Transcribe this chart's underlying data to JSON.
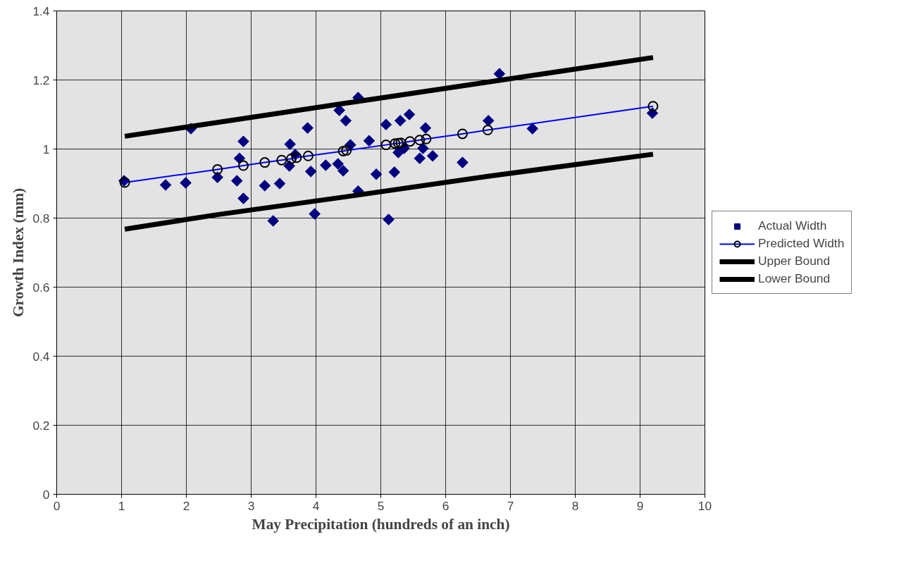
{
  "chart_data": {
    "type": "scatter",
    "xlabel": "May Precipitation (hundreds of an inch)",
    "ylabel": "Growth Index (mm)",
    "xlim": [
      0,
      10
    ],
    "ylim": [
      0,
      1.4
    ],
    "xticks": [
      0,
      1,
      2,
      3,
      4,
      5,
      6,
      7,
      8,
      9,
      10
    ],
    "yticks": [
      0,
      0.2,
      0.4,
      0.6,
      0.8,
      1,
      1.2,
      1.4
    ],
    "grid": true,
    "legend": "right",
    "series": [
      {
        "name": "Actual Width",
        "marker": "diamond",
        "color": "#000080",
        "x": [
          1.04,
          1.68,
          1.99,
          2.07,
          2.48,
          2.78,
          2.82,
          2.88,
          2.88,
          3.21,
          3.34,
          3.44,
          3.59,
          3.6,
          3.68,
          3.87,
          3.92,
          3.98,
          4.15,
          4.34,
          4.36,
          4.42,
          4.46,
          4.53,
          4.65,
          4.65,
          4.82,
          4.93,
          5.08,
          5.12,
          5.21,
          5.27,
          5.3,
          5.36,
          5.44,
          5.6,
          5.65,
          5.69,
          5.8,
          6.26,
          6.66,
          6.83,
          7.34,
          9.19
        ],
        "values": [
          0.908,
          0.896,
          0.902,
          1.059,
          0.918,
          0.908,
          0.973,
          1.022,
          0.857,
          0.894,
          0.792,
          0.9,
          0.951,
          1.014,
          0.984,
          1.061,
          0.935,
          0.812,
          0.953,
          0.957,
          1.112,
          0.937,
          1.082,
          1.012,
          0.878,
          1.149,
          1.024,
          0.927,
          1.071,
          0.796,
          0.933,
          0.99,
          1.082,
          1.002,
          1.1,
          0.973,
          1.002,
          1.061,
          0.98,
          0.961,
          1.082,
          1.218,
          1.059,
          1.104
        ]
      },
      {
        "name": "Predicted Width",
        "type": "line",
        "marker": "circle",
        "color": "#0000ff",
        "x": [
          1.05,
          2.48,
          2.88,
          3.21,
          3.47,
          3.62,
          3.7,
          3.88,
          4.42,
          4.47,
          5.08,
          5.22,
          5.27,
          5.31,
          5.45,
          5.6,
          5.7,
          6.26,
          6.65,
          9.2
        ],
        "values": [
          0.903,
          0.941,
          0.952,
          0.961,
          0.968,
          0.972,
          0.975,
          0.98,
          0.994,
          0.996,
          1.012,
          1.016,
          1.017,
          1.018,
          1.022,
          1.026,
          1.029,
          1.044,
          1.055,
          1.124
        ]
      },
      {
        "name": "Upper Bound",
        "type": "line",
        "color": "#000000",
        "x": [
          1.05,
          2.48,
          4.47,
          6.65,
          9.2
        ],
        "values": [
          1.037,
          1.077,
          1.133,
          1.194,
          1.265
        ]
      },
      {
        "name": "Lower Bound",
        "type": "line",
        "color": "#000000",
        "x": [
          1.05,
          2.48,
          4.47,
          6.65,
          9.2
        ],
        "values": [
          0.768,
          0.81,
          0.862,
          0.921,
          0.985
        ]
      }
    ]
  }
}
